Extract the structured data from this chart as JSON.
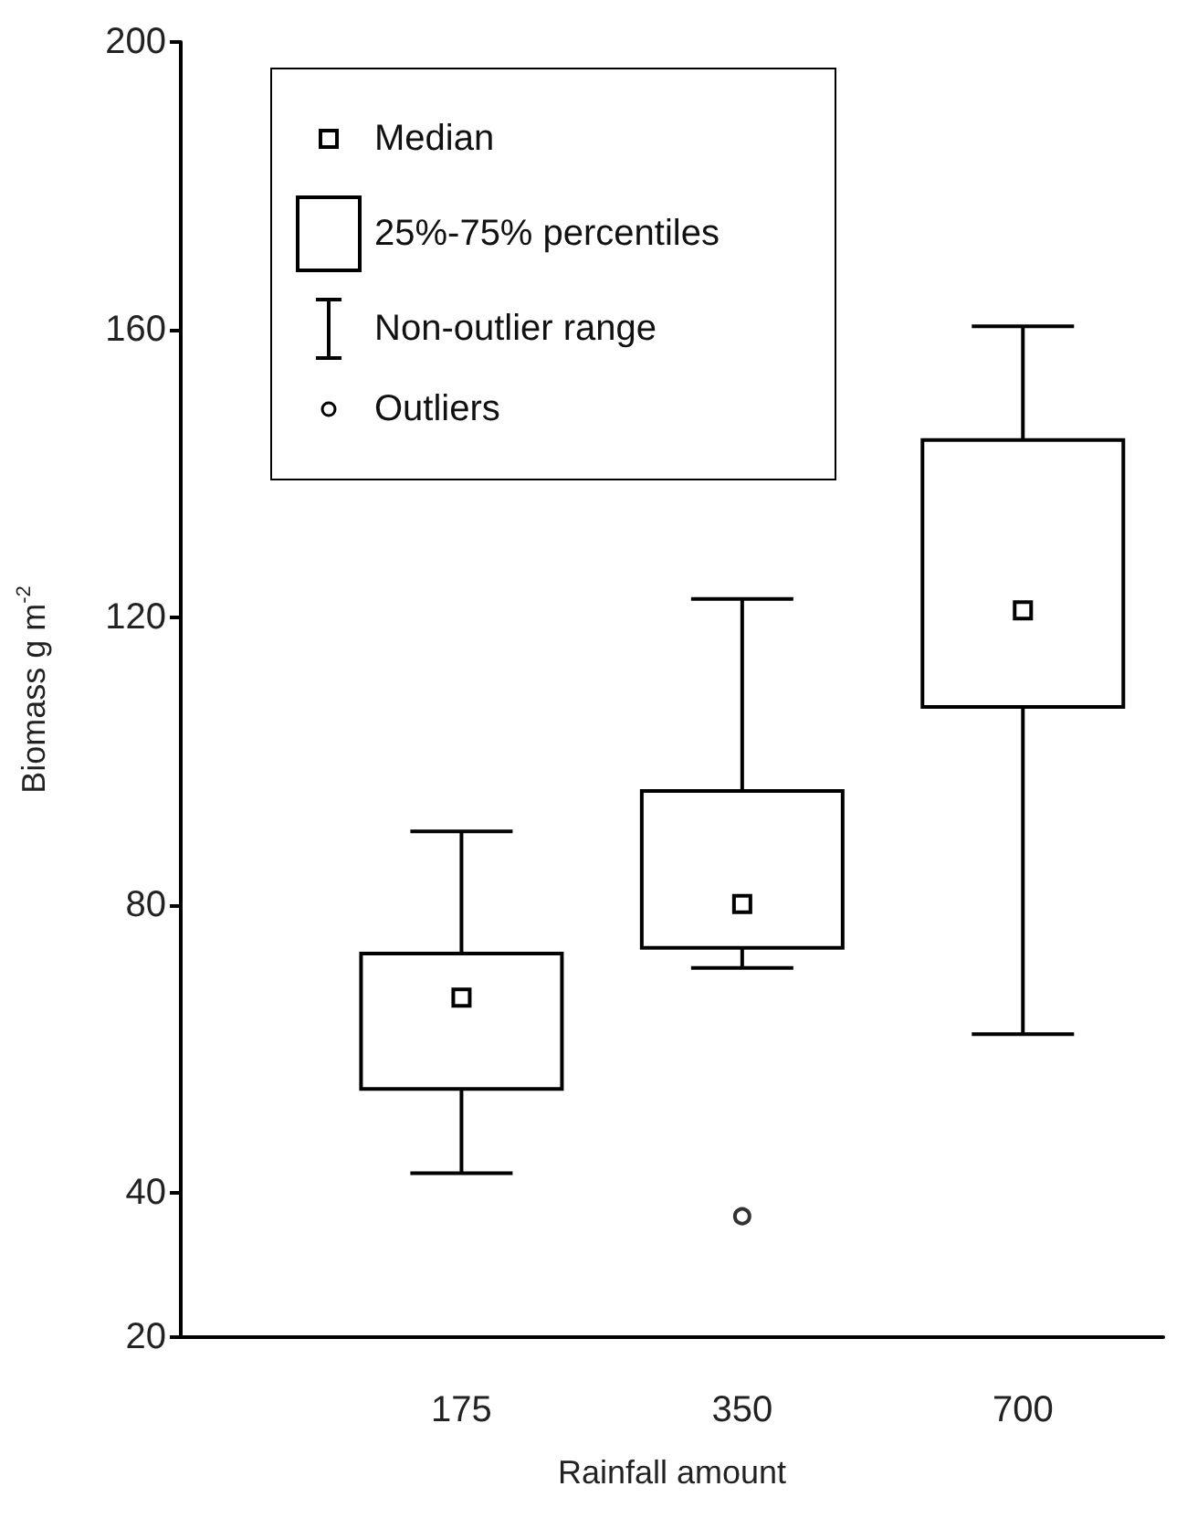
{
  "chart_data": {
    "type": "box",
    "xlabel": "Rainfall amount",
    "ylabel": "Biomass g m$^{-2}$",
    "categories": [
      "175",
      "350",
      "700"
    ],
    "boxes": [
      {
        "low": 42.8,
        "q1": 54.5,
        "median": 67.2,
        "q3": 73.3,
        "high": 90.3
      },
      {
        "low": 71.3,
        "q1": 74.1,
        "median": 80.2,
        "q3": 95.9,
        "high": 122.6,
        "outliers": [
          36.8
        ]
      },
      {
        "low": 62.1,
        "q1": 107.6,
        "median": 121,
        "q3": 144.7,
        "high": 160.5
      }
    ],
    "color": "#000000",
    "ylim": [
      20,
      200
    ],
    "yticks": [
      20,
      40,
      80,
      120,
      160,
      200
    ],
    "grid": false,
    "marker": "square",
    "annotations": [
      "Median",
      "25%-75% percentiles",
      "Non-outlier range",
      "Outliers"
    ]
  }
}
